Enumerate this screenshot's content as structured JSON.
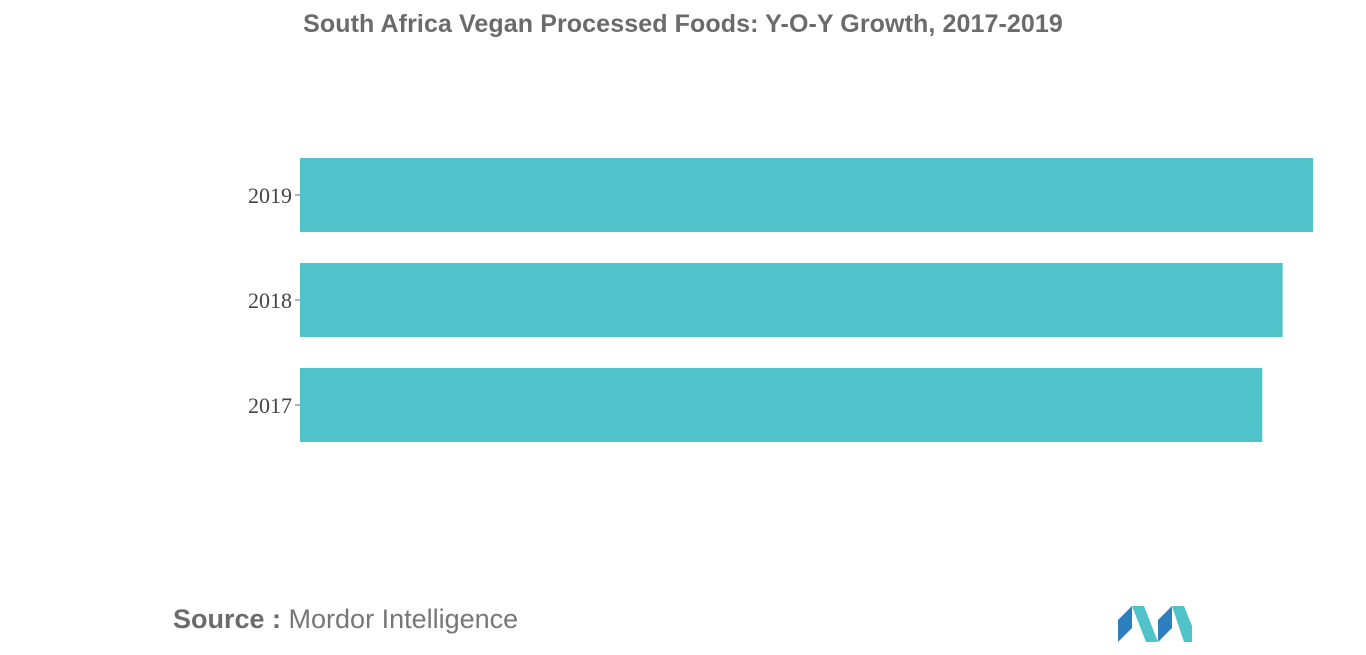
{
  "chart_data": {
    "type": "bar",
    "orientation": "horizontal",
    "title": "South Africa Vegan Processed Foods: Y-O-Y Growth, 2017-2019",
    "categories": [
      "2019",
      "2018",
      "2017"
    ],
    "values": [
      100,
      97,
      95
    ],
    "xlim": [
      0,
      100
    ],
    "xlabel": "",
    "ylabel": "",
    "grid": false,
    "legend": "none",
    "value_axis_labels": "none",
    "bar_color": "#4fc3c9"
  },
  "source": {
    "label": "Source :",
    "name": "Mordor Intelligence"
  },
  "logo": {
    "colors": [
      "#2e7fbf",
      "#4fc3c9",
      "#1f5f8f"
    ]
  }
}
